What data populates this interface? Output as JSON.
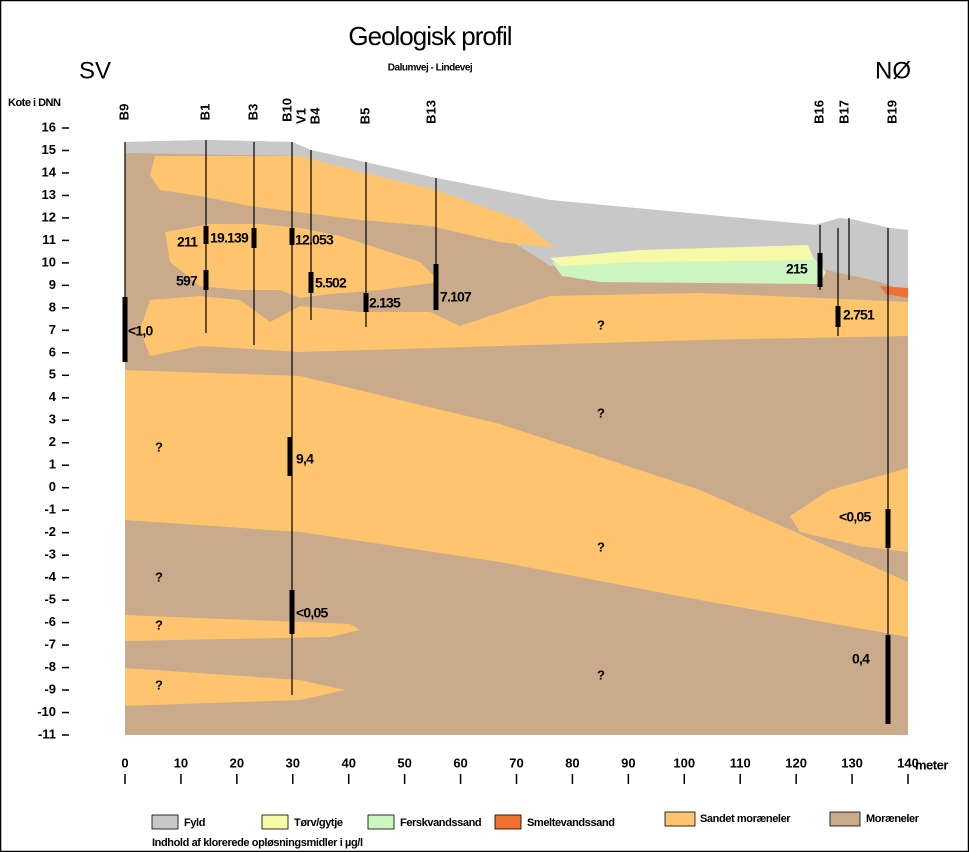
{
  "header": {
    "title": "Geologisk profil",
    "subtitle": "Dalumvej - Lindevej",
    "left_direction": "SV",
    "right_direction": "NØ"
  },
  "axes": {
    "y_label": "Kote i DNN",
    "yticks": [
      16,
      15,
      14,
      13,
      12,
      11,
      10,
      9,
      8,
      7,
      6,
      5,
      4,
      3,
      2,
      1,
      0,
      -1,
      -2,
      -3,
      -4,
      -5,
      -6,
      -7,
      -8,
      -9,
      -10,
      -11
    ],
    "xticks": [
      0,
      10,
      20,
      30,
      40,
      50,
      60,
      70,
      80,
      90,
      100,
      110,
      120,
      130,
      140
    ],
    "x_unit": "meter"
  },
  "boreholes": [
    "B9",
    "B1",
    "B3",
    "B10",
    "V1",
    "B4",
    "B5",
    "B13",
    "B16",
    "B17",
    "B19"
  ],
  "concentrations": [
    "211",
    "19.139",
    "12.053",
    "597",
    "5.502",
    "2.135",
    "7.107",
    "<1,0",
    "9,4",
    "<0,05",
    "215",
    "2.751",
    "<0,05",
    "0,4"
  ],
  "unknown_markers": [
    "?",
    "?",
    "?",
    "?",
    "?",
    "?",
    "?",
    "?"
  ],
  "legend": [
    "Fyld",
    "Tørv/gytje",
    "Ferskvandssand",
    "Smeltevandssand",
    "Sandet moræneler",
    "Moræneler"
  ],
  "footnote": "Indhold af klorerede opløsningsmidler i µg/l"
}
